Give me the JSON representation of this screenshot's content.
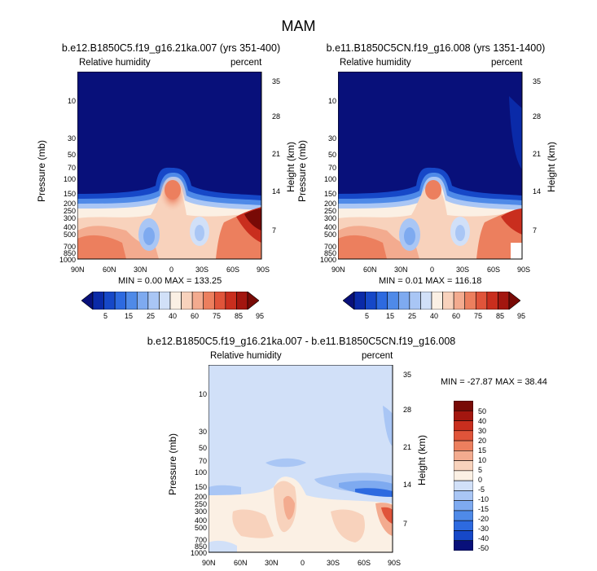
{
  "title": "MAM",
  "chart_data": [
    {
      "type": "heatmap",
      "title": "b.e12.B1850C5.f19_g16.21ka.007 (yrs 351-400)",
      "left_label": "Relative humidity",
      "right_label": "percent",
      "xlabel": "",
      "ylabel": "Pressure (mb)",
      "y2label": "Height (km)",
      "x_ticks": [
        "90N",
        "60N",
        "30N",
        "0",
        "30S",
        "60S",
        "90S"
      ],
      "y_ticks": [
        "1000",
        "850",
        "700",
        "500",
        "400",
        "300",
        "250",
        "200",
        "150",
        "100",
        "70",
        "50",
        "30",
        "10"
      ],
      "y2_ticks": [
        "7",
        "14",
        "21",
        "28",
        "35"
      ],
      "min": "0.00",
      "max": "133.25",
      "minmax_text": "MIN =   0.00   MAX = 133.25",
      "colorbar_labels": [
        "5",
        "15",
        "25",
        "40",
        "60",
        "75",
        "85",
        "95"
      ]
    },
    {
      "type": "heatmap",
      "title": "b.e11.B1850C5CN.f19_g16.008 (yrs 1351-1400)",
      "left_label": "Relative humidity",
      "right_label": "percent",
      "ylabel": "Pressure (mb)",
      "y2label": "Height (km)",
      "x_ticks": [
        "90N",
        "60N",
        "30N",
        "0",
        "30S",
        "60S",
        "90S"
      ],
      "y_ticks": [
        "1000",
        "850",
        "700",
        "500",
        "400",
        "300",
        "250",
        "200",
        "150",
        "100",
        "70",
        "50",
        "30",
        "10"
      ],
      "y2_ticks": [
        "7",
        "14",
        "21",
        "28",
        "35"
      ],
      "min": "0.01",
      "max": "116.18",
      "minmax_text": "MIN =   0.01   MAX = 116.18",
      "colorbar_labels": [
        "5",
        "15",
        "25",
        "40",
        "60",
        "75",
        "85",
        "95"
      ]
    },
    {
      "type": "heatmap",
      "title": "b.e12.B1850C5.f19_g16.21ka.007 - b.e11.B1850C5CN.f19_g16.008",
      "left_label": "Relative humidity",
      "right_label": "percent",
      "ylabel": "Pressure (mb)",
      "y2label": "Height (km)",
      "x_ticks": [
        "90N",
        "60N",
        "30N",
        "0",
        "30S",
        "60S",
        "90S"
      ],
      "y_ticks": [
        "1000",
        "850",
        "700",
        "500",
        "400",
        "300",
        "250",
        "200",
        "150",
        "100",
        "70",
        "50",
        "30",
        "10"
      ],
      "y2_ticks": [
        "7",
        "14",
        "21",
        "28",
        "35"
      ],
      "min": "-27.87",
      "max": "38.44",
      "minmax_text": "MIN = -27.87  MAX =  38.44",
      "colorbar_labels": [
        "50",
        "40",
        "30",
        "20",
        "15",
        "10",
        "5",
        "0",
        "-5",
        "-10",
        "-15",
        "-20",
        "-30",
        "-40",
        "-50"
      ]
    }
  ],
  "colors": {
    "abs_scale": [
      "#08107a",
      "#0a2aa8",
      "#1648c8",
      "#2d6ae0",
      "#4f8ae8",
      "#7eaaf0",
      "#a9c6f5",
      "#d1e0f8",
      "#fbf0e4",
      "#f8d2bc",
      "#f3ab8f",
      "#ec7f5e",
      "#e0543a",
      "#c92e1e",
      "#a3160f",
      "#780a06"
    ],
    "diff_scale": [
      "#780a06",
      "#a3160f",
      "#c92e1e",
      "#e0543a",
      "#ec7f5e",
      "#f3ab8f",
      "#f8d2bc",
      "#fbf0e4",
      "#d1e0f8",
      "#a9c6f5",
      "#7eaaf0",
      "#4f8ae8",
      "#2d6ae0",
      "#1648c8",
      "#08107a"
    ]
  }
}
